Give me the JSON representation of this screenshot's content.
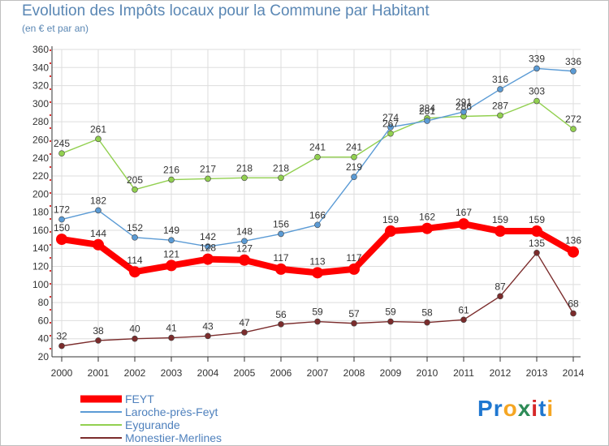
{
  "header": {
    "title": "Evolution des Impôts locaux pour la Commune par Habitant",
    "subtitle": "(en € et par an)"
  },
  "logo": {
    "text": "Proxiti"
  },
  "chart_data": {
    "type": "line",
    "title": "Evolution des Impôts locaux pour la Commune par Habitant",
    "subtitle": "(en € et par an)",
    "xlabel": "",
    "ylabel": "",
    "x": [
      "2000",
      "2001",
      "2002",
      "2003",
      "2004",
      "2005",
      "2006",
      "2007",
      "2008",
      "2009",
      "2010",
      "2011",
      "2012",
      "2013",
      "2014"
    ],
    "ylim": [
      20,
      360
    ],
    "yticks": [
      20,
      40,
      60,
      80,
      100,
      120,
      140,
      160,
      180,
      200,
      220,
      240,
      260,
      280,
      300,
      320,
      340,
      360
    ],
    "grid": true,
    "legend_position": "bottom-left",
    "series": [
      {
        "name": "FEYT",
        "color": "#ff0000",
        "values": [
          150,
          144,
          114,
          121,
          128,
          127,
          117,
          113,
          117,
          159,
          162,
          167,
          159,
          159,
          136
        ]
      },
      {
        "name": "Laroche-près-Feyt",
        "color": "#5b9bd5",
        "values": [
          172,
          182,
          152,
          149,
          142,
          148,
          156,
          166,
          219,
          274,
          281,
          291,
          316,
          339,
          336
        ]
      },
      {
        "name": "Eygurande",
        "color": "#92d050",
        "values": [
          245,
          261,
          205,
          216,
          217,
          218,
          218,
          241,
          241,
          267,
          284,
          286,
          287,
          303,
          272
        ]
      },
      {
        "name": "Monestier-Merlines",
        "color": "#7b2c2c",
        "values": [
          32,
          38,
          40,
          41,
          43,
          47,
          56,
          59,
          57,
          59,
          58,
          61,
          87,
          135,
          68
        ]
      }
    ]
  }
}
